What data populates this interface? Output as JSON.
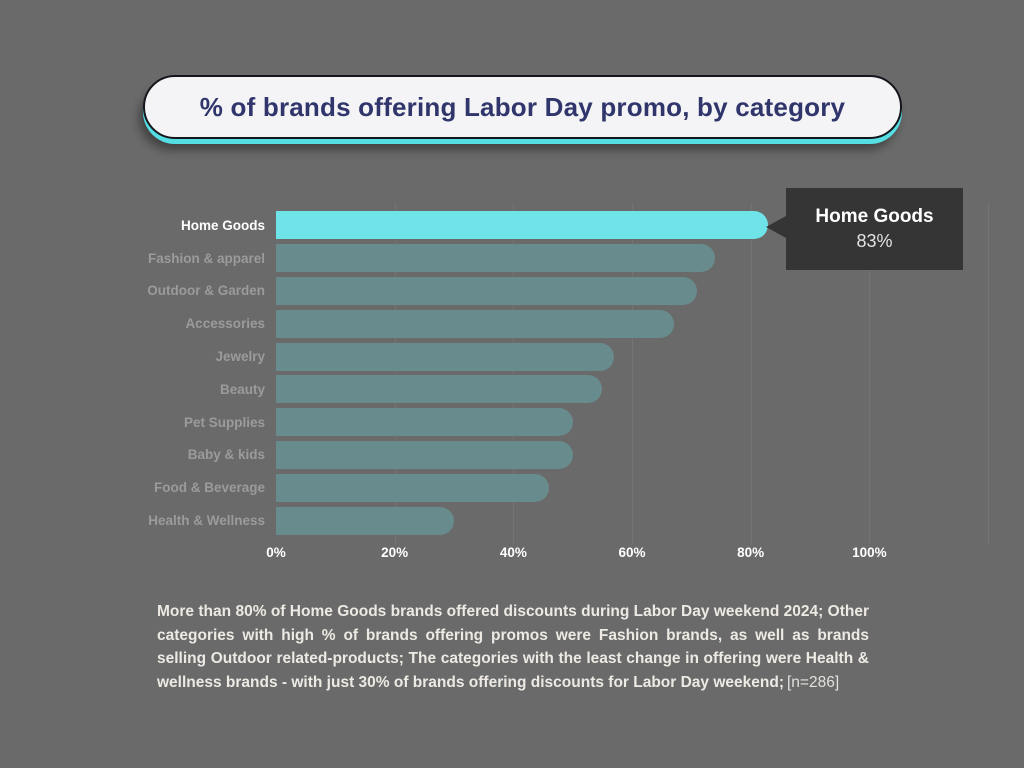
{
  "title_banner": {
    "text": "% of brands offering Labor Day promo, by category"
  },
  "colors": {
    "page_bg": "#6a6a6a",
    "banner_bg": "#f4f4f6",
    "banner_border": "#15151d",
    "banner_text": "#30366b",
    "accent_cyan": "#55dee3",
    "tooltip_bg": "#353535",
    "label_gray": "#9b9b9b",
    "caption_color": "#edeae4"
  },
  "chart_data": {
    "type": "bar",
    "orientation": "horizontal",
    "title": "% of brands offering Labor Day promo, by category",
    "categories": [
      "Home Goods",
      "Fashion & apparel",
      "Outdoor & Garden",
      "Accessories",
      "Jewelry",
      "Beauty",
      "Pet Supplies",
      "Baby & kids",
      "Food & Beverage",
      "Health & Wellness"
    ],
    "values": [
      83,
      74,
      71,
      67,
      57,
      55,
      50,
      50,
      46,
      30
    ],
    "unit": "%",
    "highlight_category": "Home Goods",
    "highlight_color": "#6ee4e8",
    "bar_color": "#688b8d",
    "grid": true,
    "x_axis": {
      "tick_labels": [
        "0%",
        "20%",
        "40%",
        "60%",
        "80%",
        "100%"
      ],
      "tick_values": [
        0,
        20,
        40,
        60,
        80,
        100
      ],
      "grid_values": [
        20,
        40,
        60,
        80,
        100,
        120
      ],
      "max": 120
    }
  },
  "tooltip": {
    "title": "Home Goods",
    "value": "83%"
  },
  "caption": {
    "text": "More than 80% of Home Goods brands offered discounts during Labor Day weekend 2024; Other categories with high % of brands offering promos were Fashion brands, as well as brands selling Outdoor related-products;  The categories with the least change in offering were Health & wellness brands - with just 30% of brands offering discounts for Labor Day weekend;",
    "note": "[n=286]"
  }
}
